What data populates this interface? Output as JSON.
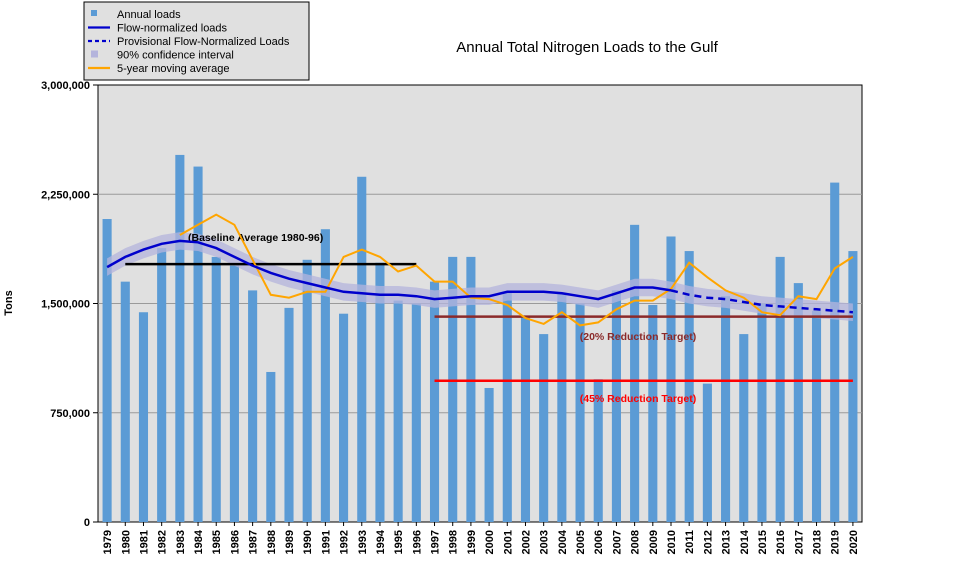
{
  "chart_data": {
    "type": "bar",
    "title": "Annual Total Nitrogen Loads to the Gulf",
    "ylabel": "Tons",
    "xlabel": "",
    "ylim": [
      0,
      3000000
    ],
    "y_ticks": [
      0,
      750000,
      1500000,
      2250000,
      3000000
    ],
    "y_tick_labels": [
      "0",
      "750,000",
      "1,500,000",
      "2,250,000",
      "3,000,000"
    ],
    "grid": true,
    "legend_position": "top-left",
    "categories": [
      "1979",
      "1980",
      "1981",
      "1982",
      "1983",
      "1984",
      "1985",
      "1986",
      "1987",
      "1988",
      "1989",
      "1990",
      "1991",
      "1992",
      "1993",
      "1994",
      "1995",
      "1996",
      "1997",
      "1998",
      "1999",
      "2000",
      "2001",
      "2002",
      "2003",
      "2004",
      "2005",
      "2006",
      "2007",
      "2008",
      "2009",
      "2010",
      "2011",
      "2012",
      "2013",
      "2014",
      "2015",
      "2016",
      "2017",
      "2018",
      "2019",
      "2020"
    ],
    "series": [
      {
        "name": "Annual loads",
        "kind": "bar",
        "color": "#5b9bd5",
        "values": [
          2080000,
          1650000,
          1440000,
          1880000,
          2520000,
          2440000,
          1820000,
          1760000,
          1590000,
          1030000,
          1470000,
          1800000,
          2010000,
          1430000,
          2370000,
          1780000,
          1520000,
          1500000,
          1650000,
          1820000,
          1820000,
          920000,
          1580000,
          1410000,
          1290000,
          1570000,
          1500000,
          980000,
          1590000,
          2040000,
          1490000,
          1960000,
          1860000,
          950000,
          1550000,
          1290000,
          1500000,
          1820000,
          1640000,
          1450000,
          2330000,
          1860000
        ]
      },
      {
        "name": "Flow-normalized loads",
        "kind": "line",
        "color": "#0000cc",
        "values": [
          1750000,
          1820000,
          1870000,
          1910000,
          1930000,
          1920000,
          1880000,
          1820000,
          1760000,
          1710000,
          1670000,
          1640000,
          1610000,
          1580000,
          1570000,
          1560000,
          1560000,
          1550000,
          1530000,
          1540000,
          1550000,
          1550000,
          1580000,
          1580000,
          1580000,
          1570000,
          1550000,
          1530000,
          1570000,
          1610000,
          1610000,
          1590000,
          null,
          null,
          null,
          null,
          null,
          null,
          null,
          null,
          null,
          null
        ]
      },
      {
        "name": "Provisional Flow-Normalized Loads",
        "kind": "dashed-line",
        "color": "#0000cc",
        "values": [
          null,
          null,
          null,
          null,
          null,
          null,
          null,
          null,
          null,
          null,
          null,
          null,
          null,
          null,
          null,
          null,
          null,
          null,
          null,
          null,
          null,
          null,
          null,
          null,
          null,
          null,
          null,
          null,
          null,
          null,
          null,
          1590000,
          1560000,
          1540000,
          1530000,
          1510000,
          1490000,
          1480000,
          1470000,
          1460000,
          1450000,
          1440000
        ]
      },
      {
        "name": "90% confidence interval",
        "kind": "band",
        "color": "#b4b4dc",
        "half_width": 60000
      },
      {
        "name": "5-year moving average",
        "kind": "line",
        "color": "#ffa500",
        "values": [
          null,
          null,
          null,
          null,
          1970000,
          2040000,
          2110000,
          2040000,
          1800000,
          1560000,
          1540000,
          1580000,
          1580000,
          1820000,
          1870000,
          1820000,
          1720000,
          1760000,
          1650000,
          1650000,
          1540000,
          1530000,
          1490000,
          1400000,
          1360000,
          1440000,
          1350000,
          1370000,
          1460000,
          1520000,
          1520000,
          1600000,
          1780000,
          1680000,
          1590000,
          1540000,
          1440000,
          1420000,
          1550000,
          1530000,
          1740000,
          1820000
        ]
      }
    ],
    "reference_lines": [
      {
        "label": "(Baseline Average 1980-96)",
        "value": 1770000,
        "from": "1980",
        "to": "1996",
        "color": "#000000"
      },
      {
        "label": "(20% Reduction Target)",
        "value": 1410000,
        "from": "1997",
        "to": "2020",
        "color": "#8b2a2a"
      },
      {
        "label": "(45% Reduction Target)",
        "value": 970000,
        "from": "1997",
        "to": "2020",
        "color": "#ff0000"
      }
    ]
  }
}
